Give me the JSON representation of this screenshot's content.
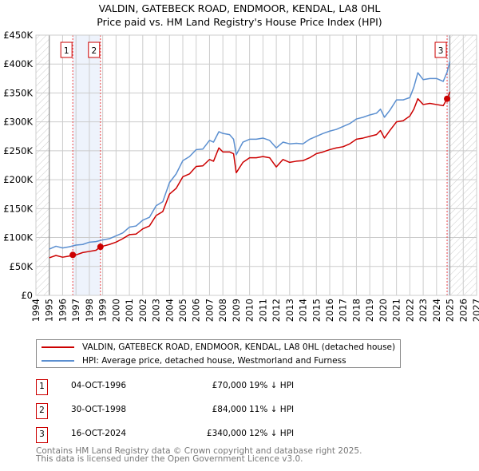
{
  "chart_data": {
    "type": "line",
    "title": [
      "VALDIN, GATEBECK ROAD, ENDMOOR, KENDAL, LA8 0HL",
      "Price paid vs. HM Land Registry's House Price Index (HPI)"
    ],
    "xlim": [
      1994,
      2027
    ],
    "ylim": [
      0,
      450000
    ],
    "x_ticks": [
      "1994",
      "1995",
      "1996",
      "1997",
      "1998",
      "1999",
      "2000",
      "2001",
      "2002",
      "2003",
      "2004",
      "2005",
      "2006",
      "2007",
      "2008",
      "2009",
      "2010",
      "2011",
      "2012",
      "2013",
      "2014",
      "2015",
      "2016",
      "2017",
      "2018",
      "2019",
      "2020",
      "2021",
      "2022",
      "2023",
      "2024",
      "2025",
      "2026",
      "2027"
    ],
    "y_ticks": [
      {
        "v": 0,
        "label": "£0"
      },
      {
        "v": 50000,
        "label": "£50K"
      },
      {
        "v": 100000,
        "label": "£100K"
      },
      {
        "v": 150000,
        "label": "£150K"
      },
      {
        "v": 200000,
        "label": "£200K"
      },
      {
        "v": 250000,
        "label": "£250K"
      },
      {
        "v": 300000,
        "label": "£300K"
      },
      {
        "v": 350000,
        "label": "£350K"
      },
      {
        "v": 400000,
        "label": "£400K"
      },
      {
        "v": 450000,
        "label": "£450K"
      }
    ],
    "data_range": [
      1995,
      2025
    ],
    "series": [
      {
        "name": "VALDIN, GATEBECK ROAD, ENDMOOR, KENDAL, LA8 0HL (detached house)",
        "color": "#cc0000",
        "x": [
          1995,
          1995.5,
          1996,
          1996.5,
          1996.76,
          1997,
          1997.5,
          1998,
          1998.5,
          1998.83,
          1999,
          1999.5,
          2000,
          2000.5,
          2001,
          2001.5,
          2002,
          2002.5,
          2003,
          2003.5,
          2004,
          2004.5,
          2005,
          2005.5,
          2006,
          2006.5,
          2007,
          2007.3,
          2007.7,
          2008,
          2008.5,
          2008.8,
          2009,
          2009.5,
          2010,
          2010.5,
          2011,
          2011.5,
          2012,
          2012.5,
          2013,
          2013.5,
          2014,
          2014.5,
          2015,
          2015.5,
          2016,
          2016.5,
          2017,
          2017.5,
          2018,
          2018.5,
          2019,
          2019.5,
          2019.8,
          2020.1,
          2020.5,
          2021,
          2021.5,
          2022,
          2022.3,
          2022.6,
          2023,
          2023.5,
          2024,
          2024.5,
          2024.79,
          2025
        ],
        "y": [
          65000,
          69000,
          66000,
          68000,
          70000,
          70000,
          74000,
          76000,
          78000,
          84000,
          85000,
          88000,
          92000,
          98000,
          105000,
          106000,
          115000,
          120000,
          138000,
          145000,
          175000,
          185000,
          205000,
          210000,
          223000,
          224000,
          235000,
          232000,
          255000,
          248000,
          248000,
          245000,
          212000,
          230000,
          238000,
          238000,
          240000,
          238000,
          222000,
          235000,
          230000,
          232000,
          233000,
          238000,
          245000,
          248000,
          252000,
          255000,
          257000,
          262000,
          270000,
          272000,
          275000,
          278000,
          285000,
          272000,
          285000,
          300000,
          302000,
          310000,
          322000,
          340000,
          330000,
          332000,
          330000,
          328000,
          340000,
          352000
        ]
      },
      {
        "name": "HPI: Average price, detached house, Westmorland and Furness",
        "color": "#5b8fd0",
        "x": [
          1995,
          1995.5,
          1996,
          1996.5,
          1997,
          1997.5,
          1998,
          1998.5,
          1999,
          1999.5,
          2000,
          2000.5,
          2001,
          2001.5,
          2002,
          2002.5,
          2003,
          2003.5,
          2004,
          2004.5,
          2005,
          2005.5,
          2006,
          2006.5,
          2007,
          2007.3,
          2007.7,
          2008,
          2008.5,
          2008.8,
          2009,
          2009.5,
          2010,
          2010.5,
          2011,
          2011.5,
          2012,
          2012.5,
          2013,
          2013.5,
          2014,
          2014.5,
          2015,
          2015.5,
          2016,
          2016.5,
          2017,
          2017.5,
          2018,
          2018.5,
          2019,
          2019.5,
          2019.8,
          2020.1,
          2020.5,
          2021,
          2021.5,
          2022,
          2022.3,
          2022.6,
          2023,
          2023.5,
          2024,
          2024.5,
          2024.79,
          2025
        ],
        "y": [
          80000,
          85000,
          82000,
          84000,
          87000,
          88000,
          92000,
          93000,
          96000,
          98000,
          103000,
          108000,
          118000,
          120000,
          130000,
          135000,
          155000,
          162000,
          195000,
          210000,
          233000,
          240000,
          252000,
          253000,
          268000,
          265000,
          283000,
          280000,
          278000,
          270000,
          243000,
          265000,
          270000,
          270000,
          272000,
          268000,
          255000,
          265000,
          262000,
          263000,
          262000,
          270000,
          275000,
          280000,
          284000,
          287000,
          292000,
          297000,
          305000,
          308000,
          312000,
          315000,
          322000,
          308000,
          320000,
          338000,
          338000,
          342000,
          360000,
          385000,
          373000,
          375000,
          375000,
          370000,
          386000,
          404000
        ]
      }
    ],
    "sales": [
      {
        "n": "1",
        "x": 1996.76,
        "y": 70000,
        "date": "04-OCT-1996",
        "price": "£70,000",
        "hpi": "19% ↓ HPI"
      },
      {
        "n": "2",
        "x": 1998.83,
        "y": 84000,
        "date": "30-OCT-1998",
        "price": "£84,000",
        "hpi": "11% ↓ HPI"
      },
      {
        "n": "3",
        "x": 2024.79,
        "y": 340000,
        "date": "16-OCT-2024",
        "price": "£340,000",
        "hpi": "12% ↓ HPI"
      }
    ],
    "legend_placement": "below",
    "grid": true
  },
  "footer": [
    "Contains HM Land Registry data © Crown copyright and database right 2025.",
    "This data is licensed under the Open Government Licence v3.0."
  ]
}
